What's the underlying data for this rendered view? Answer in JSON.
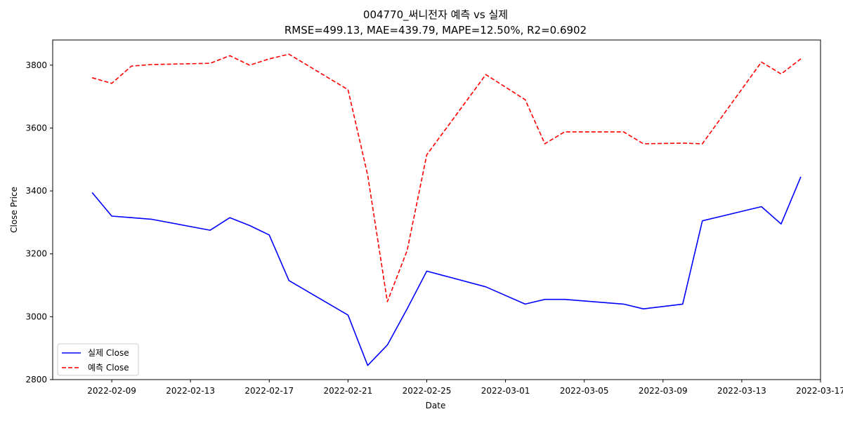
{
  "chart_data": {
    "type": "line",
    "title": "004770_써니전자 예측 vs 실제",
    "subtitle": "RMSE=499.13, MAE=439.79, MAPE=12.50%, R2=0.6902",
    "xlabel": "Date",
    "ylabel": "Close Price",
    "ylim": [
      2800,
      3880
    ],
    "xlim": [
      "2022-02-06",
      "2022-03-17"
    ],
    "x_ticks": [
      "2022-02-09",
      "2022-02-13",
      "2022-02-17",
      "2022-02-21",
      "2022-02-25",
      "2022-03-01",
      "2022-03-05",
      "2022-03-09",
      "2022-03-13",
      "2022-03-17"
    ],
    "y_ticks": [
      2800,
      3000,
      3200,
      3400,
      3600,
      3800
    ],
    "grid": false,
    "legend_position": "lower-left",
    "x": [
      "2022-02-08",
      "2022-02-09",
      "2022-02-10",
      "2022-02-11",
      "2022-02-14",
      "2022-02-15",
      "2022-02-16",
      "2022-02-17",
      "2022-02-18",
      "2022-02-21",
      "2022-02-22",
      "2022-02-23",
      "2022-02-24",
      "2022-02-25",
      "2022-02-28",
      "2022-03-02",
      "2022-03-03",
      "2022-03-04",
      "2022-03-07",
      "2022-03-08",
      "2022-03-10",
      "2022-03-11",
      "2022-03-14",
      "2022-03-15",
      "2022-03-16"
    ],
    "series": [
      {
        "name": "실제 Close",
        "color": "#0000ff",
        "style": "solid",
        "values": [
          3395,
          3320,
          3315,
          3310,
          3275,
          3315,
          3290,
          3260,
          3115,
          3005,
          2845,
          2910,
          3025,
          3145,
          3095,
          3040,
          3055,
          3055,
          3040,
          3025,
          3040,
          3305,
          3350,
          3295,
          3445
        ]
      },
      {
        "name": "예측 Close",
        "color": "#ff0000",
        "style": "dashed",
        "values": [
          3760,
          3742,
          3797,
          3802,
          3806,
          3830,
          3800,
          3820,
          3835,
          3722,
          3450,
          3048,
          3210,
          3515,
          3770,
          3690,
          3550,
          3588,
          3588,
          3550,
          3552,
          3550,
          3810,
          3772,
          3820
        ]
      }
    ],
    "series2_extra_points": {
      "note_free": true
    }
  }
}
